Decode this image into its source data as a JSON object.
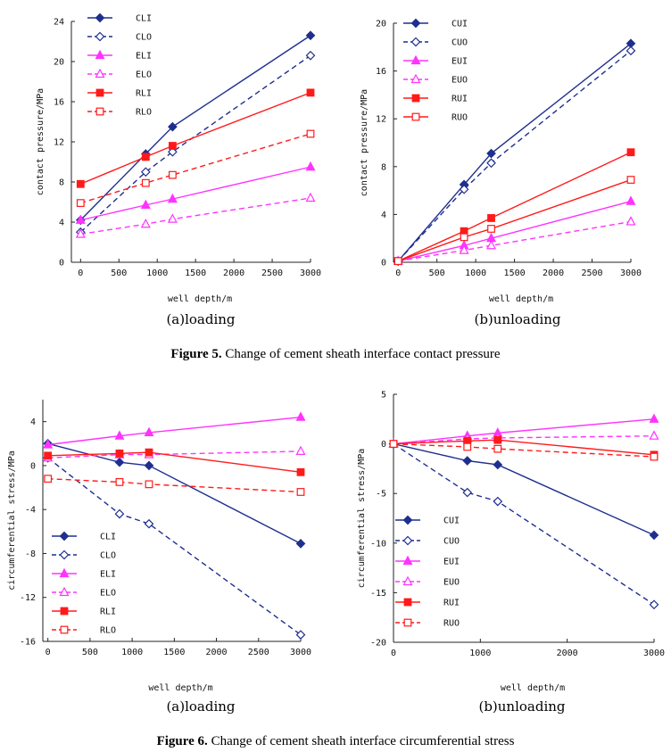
{
  "colors": {
    "cl": "#1f2f8f",
    "el": "#ff33ff",
    "rl": "#ff1a1a"
  },
  "captions": [
    {
      "label": "Figure 5.",
      "text": " Change of cement sheath interface contact pressure"
    },
    {
      "label": "Figure 6.",
      "text": " Change of cement sheath interface circumferential stress"
    }
  ],
  "chart_data": [
    {
      "type": "line",
      "subtitle": "(a)loading",
      "xlabel": "well depth/m",
      "ylabel": "contact pressure/MPa",
      "xlim": [
        0,
        3000
      ],
      "ylim": [
        0,
        24
      ],
      "xticks": [
        0,
        500,
        1000,
        1500,
        2000,
        2500,
        3000
      ],
      "yticks": [
        0,
        4,
        8,
        12,
        16,
        20,
        24
      ],
      "legend_position": "top-left",
      "x": [
        0,
        850,
        1200,
        3000
      ],
      "series": [
        {
          "name": "CLI",
          "values": [
            4.2,
            10.8,
            13.5,
            22.6
          ],
          "color": "#1f2f8f",
          "dash": false,
          "marker": "diamond",
          "filled": true
        },
        {
          "name": "CLO",
          "values": [
            3.0,
            9.0,
            11.0,
            20.6
          ],
          "color": "#1f2f8f",
          "dash": true,
          "marker": "diamond",
          "filled": false
        },
        {
          "name": "ELI",
          "values": [
            4.2,
            5.7,
            6.3,
            9.5
          ],
          "color": "#ff33ff",
          "dash": false,
          "marker": "triangle",
          "filled": true
        },
        {
          "name": "ELO",
          "values": [
            2.8,
            3.8,
            4.3,
            6.4
          ],
          "color": "#ff33ff",
          "dash": true,
          "marker": "triangle",
          "filled": false
        },
        {
          "name": "RLI",
          "values": [
            7.8,
            10.5,
            11.6,
            16.9
          ],
          "color": "#ff1a1a",
          "dash": false,
          "marker": "square",
          "filled": true
        },
        {
          "name": "RLO",
          "values": [
            5.9,
            7.9,
            8.7,
            12.8
          ],
          "color": "#ff1a1a",
          "dash": true,
          "marker": "square",
          "filled": false
        }
      ]
    },
    {
      "type": "line",
      "subtitle": "(b)unloading",
      "xlabel": "well depth/m",
      "ylabel": "contact pressure/MPa",
      "xlim": [
        0,
        3000
      ],
      "ylim": [
        0,
        20
      ],
      "xticks": [
        0,
        500,
        1000,
        1500,
        2000,
        2500,
        3000
      ],
      "yticks": [
        0,
        4,
        8,
        12,
        16,
        20
      ],
      "legend_position": "top-left",
      "x": [
        0,
        850,
        1200,
        3000
      ],
      "series": [
        {
          "name": "CUI",
          "values": [
            0.1,
            6.5,
            9.1,
            18.3
          ],
          "color": "#1f2f8f",
          "dash": false,
          "marker": "diamond",
          "filled": true
        },
        {
          "name": "CUO",
          "values": [
            0.1,
            6.1,
            8.3,
            17.7
          ],
          "color": "#1f2f8f",
          "dash": true,
          "marker": "diamond",
          "filled": false
        },
        {
          "name": "EUI",
          "values": [
            0.1,
            1.4,
            2.0,
            5.1
          ],
          "color": "#ff33ff",
          "dash": false,
          "marker": "triangle",
          "filled": true
        },
        {
          "name": "EUO",
          "values": [
            0.1,
            1.0,
            1.4,
            3.4
          ],
          "color": "#ff33ff",
          "dash": true,
          "marker": "triangle",
          "filled": false
        },
        {
          "name": "RUI",
          "values": [
            0.1,
            2.6,
            3.7,
            9.2
          ],
          "color": "#ff1a1a",
          "dash": false,
          "marker": "square",
          "filled": true
        },
        {
          "name": "RUO",
          "values": [
            0.1,
            2.1,
            2.8,
            6.9
          ],
          "color": "#ff1a1a",
          "dash": false,
          "marker": "square",
          "filled": false
        }
      ]
    },
    {
      "type": "line",
      "subtitle": "(a)loading",
      "xlabel": "well depth/m",
      "ylabel": "circumferential stress/MPa",
      "xlim": [
        0,
        3000
      ],
      "ylim": [
        -16,
        6
      ],
      "xticks": [
        0,
        500,
        1000,
        1500,
        2000,
        2500,
        3000
      ],
      "yticks": [
        -16,
        -12,
        -8,
        -4,
        0,
        4
      ],
      "legend_position": "bottom-left",
      "x": [
        0,
        850,
        1200,
        3000
      ],
      "series": [
        {
          "name": "CLI",
          "values": [
            2.0,
            0.3,
            0.0,
            -7.1
          ],
          "color": "#1f2f8f",
          "dash": false,
          "marker": "diamond",
          "filled": true
        },
        {
          "name": "CLO",
          "values": [
            0.7,
            -4.4,
            -5.3,
            -15.4
          ],
          "color": "#1f2f8f",
          "dash": true,
          "marker": "diamond",
          "filled": false
        },
        {
          "name": "ELI",
          "values": [
            1.9,
            2.7,
            3.0,
            4.4
          ],
          "color": "#ff33ff",
          "dash": false,
          "marker": "triangle",
          "filled": true
        },
        {
          "name": "ELO",
          "values": [
            0.7,
            1.0,
            1.0,
            1.3
          ],
          "color": "#ff33ff",
          "dash": true,
          "marker": "triangle",
          "filled": false
        },
        {
          "name": "RLI",
          "values": [
            0.9,
            1.1,
            1.2,
            -0.6
          ],
          "color": "#ff1a1a",
          "dash": false,
          "marker": "square",
          "filled": true
        },
        {
          "name": "RLO",
          "values": [
            -1.2,
            -1.5,
            -1.7,
            -2.4
          ],
          "color": "#ff1a1a",
          "dash": true,
          "marker": "square",
          "filled": false
        }
      ]
    },
    {
      "type": "line",
      "subtitle": "(b)unloading",
      "xlabel": "well depth/m",
      "ylabel": "circumferential stress/MPa",
      "xlim": [
        0,
        3000
      ],
      "ylim": [
        -20,
        5
      ],
      "xticks": [
        0,
        1000,
        2000,
        3000
      ],
      "yticks": [
        -20,
        -15,
        -10,
        -5,
        0,
        5
      ],
      "legend_position": "bottom-left",
      "x": [
        0,
        850,
        1200,
        3000
      ],
      "series": [
        {
          "name": "CUI",
          "values": [
            0.0,
            -1.7,
            -2.1,
            -9.2
          ],
          "color": "#1f2f8f",
          "dash": false,
          "marker": "diamond",
          "filled": true
        },
        {
          "name": "CUO",
          "values": [
            0.0,
            -4.9,
            -5.8,
            -16.2
          ],
          "color": "#1f2f8f",
          "dash": true,
          "marker": "diamond",
          "filled": false
        },
        {
          "name": "EUI",
          "values": [
            0.0,
            0.8,
            1.1,
            2.5
          ],
          "color": "#ff33ff",
          "dash": false,
          "marker": "triangle",
          "filled": true
        },
        {
          "name": "EUO",
          "values": [
            0.0,
            0.5,
            0.6,
            0.8
          ],
          "color": "#ff33ff",
          "dash": true,
          "marker": "triangle",
          "filled": false
        },
        {
          "name": "RUI",
          "values": [
            0.0,
            0.3,
            0.4,
            -1.1
          ],
          "color": "#ff1a1a",
          "dash": false,
          "marker": "square",
          "filled": true
        },
        {
          "name": "RUO",
          "values": [
            0.0,
            -0.3,
            -0.5,
            -1.3
          ],
          "color": "#ff1a1a",
          "dash": true,
          "marker": "square",
          "filled": false
        }
      ]
    }
  ]
}
